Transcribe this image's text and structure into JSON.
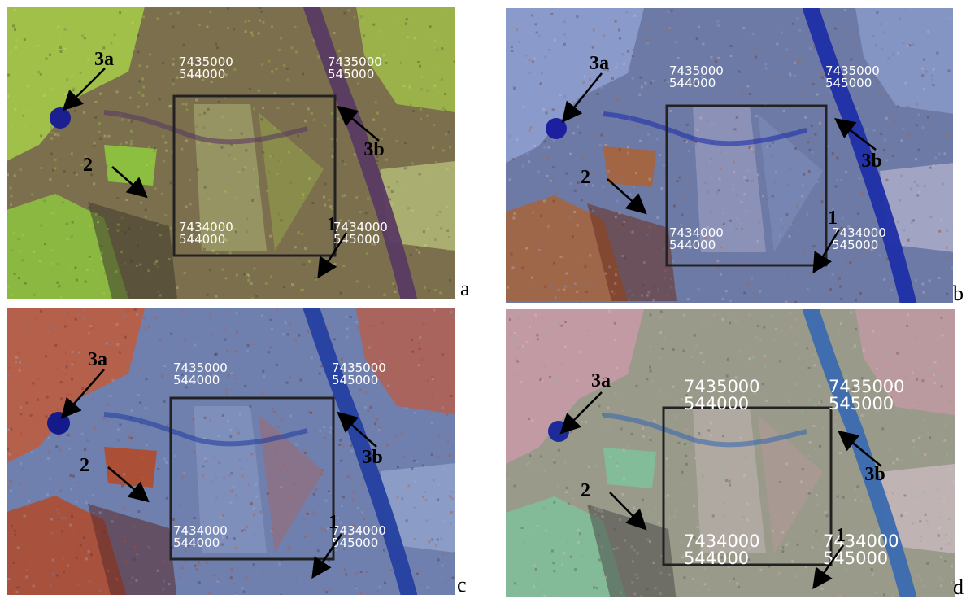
{
  "figure": {
    "panels": [
      {
        "letter": "a",
        "palette": {
          "base": "#7c6f4d",
          "bright": "#a8cf4a",
          "field": "#8ec63f",
          "river": "#5a3a63",
          "pale": "#c9d98a",
          "lake": "#1b1f8f",
          "dark": "#3f3a2e"
        },
        "coords": {
          "top_left": [
            "7435000",
            "544000"
          ],
          "top_right": [
            "7435000",
            "545000"
          ],
          "bottom_left": [
            "7434000",
            "544000"
          ],
          "bottom_right": [
            "7434000",
            "545000"
          ]
        },
        "labels": [
          "3a",
          "3b",
          "2",
          "1"
        ]
      },
      {
        "letter": "b",
        "palette": {
          "base": "#6d7aa6",
          "bright": "#8fa0d0",
          "field": "#a8643a",
          "river": "#1f2fa8",
          "pale": "#c7c0d8",
          "lake": "#1b1fa0",
          "dark": "#6a2f1e"
        },
        "coords": {
          "top_left": [
            "7435000",
            "544000"
          ],
          "top_right": [
            "7435000",
            "545000"
          ],
          "bottom_left": [
            "7434000",
            "544000"
          ],
          "bottom_right": [
            "7434000",
            "545000"
          ]
        },
        "labels": [
          "3a",
          "3b",
          "2",
          "1"
        ]
      },
      {
        "letter": "c",
        "palette": {
          "base": "#6f7fae",
          "bright": "#c25a3a",
          "field": "#b34a2a",
          "river": "#2440a0",
          "pale": "#9fb0d6",
          "lake": "#141a8a",
          "dark": "#5a2a2a"
        },
        "coords": {
          "top_left": [
            "7435000",
            "544000"
          ],
          "top_right": [
            "7435000",
            "545000"
          ],
          "bottom_left": [
            "7434000",
            "544000"
          ],
          "bottom_right": [
            "7434000",
            "545000"
          ]
        },
        "labels": [
          "3a",
          "3b",
          "2",
          "1"
        ]
      },
      {
        "letter": "d",
        "palette": {
          "base": "#9a9a8a",
          "bright": "#c99aa8",
          "field": "#7fc09a",
          "river": "#3a6ab0",
          "pale": "#d9c7cf",
          "lake": "#1c2a9a",
          "dark": "#4a4a4a"
        },
        "coords": {
          "top_left": [
            "7435000",
            "544000"
          ],
          "top_right": [
            "7435000",
            "545000"
          ],
          "bottom_left": [
            "7434000",
            "544000"
          ],
          "bottom_right": [
            "7434000",
            "545000"
          ]
        },
        "labels": [
          "3a",
          "3b",
          "2",
          "1"
        ]
      }
    ]
  }
}
